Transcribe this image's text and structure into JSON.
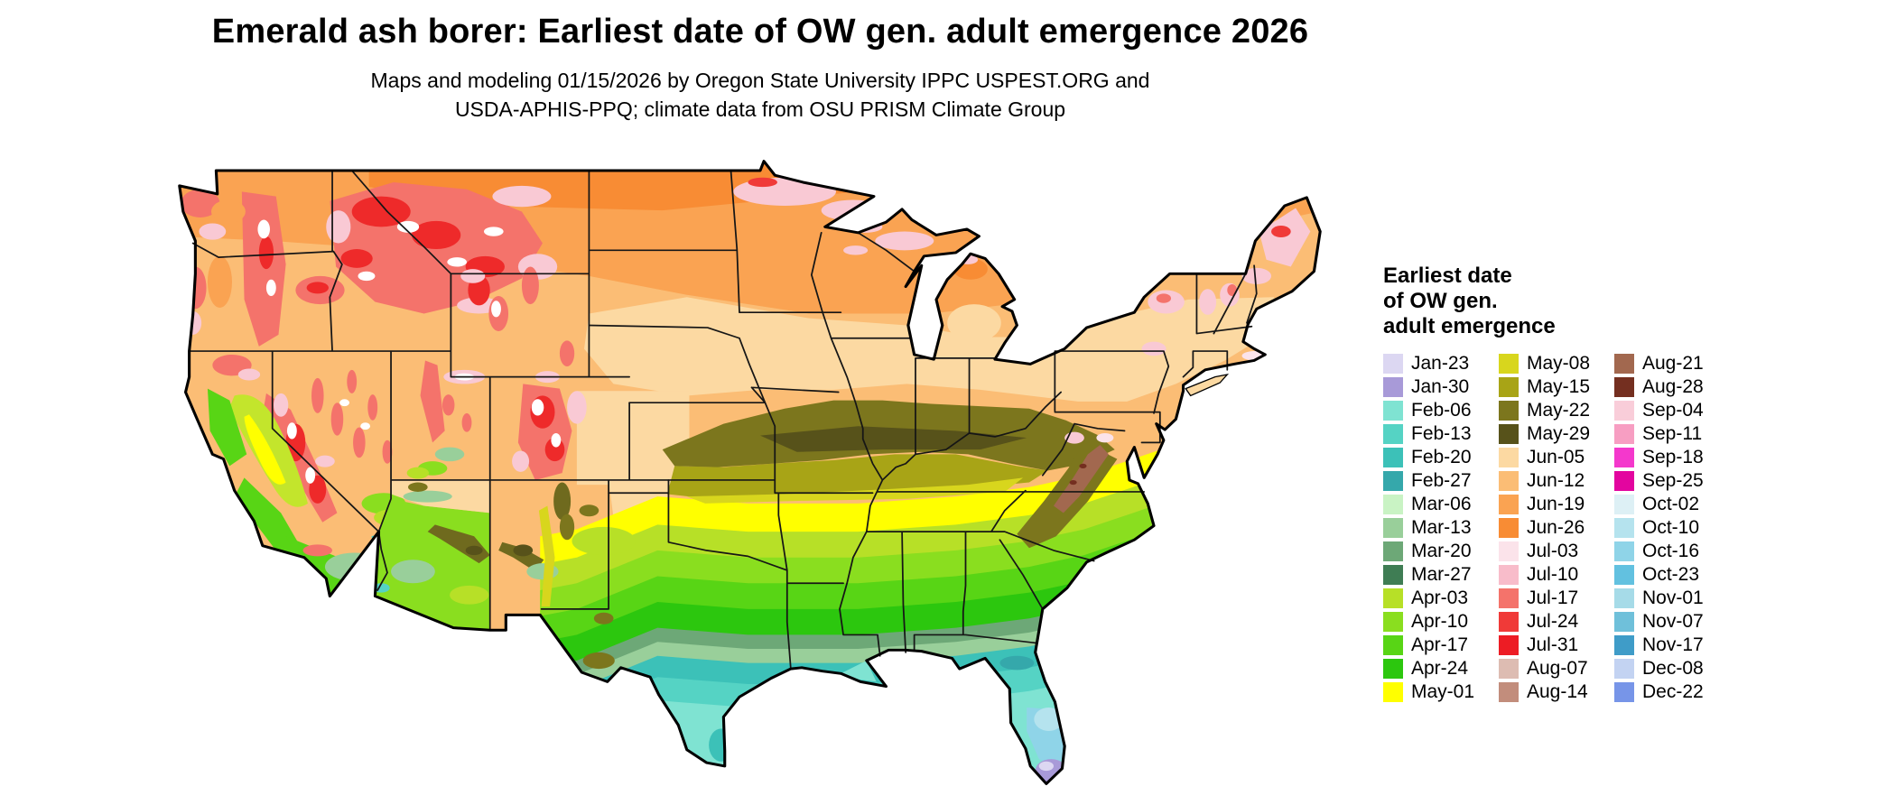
{
  "header": {
    "title": "Emerald ash borer: Earliest date of OW gen. adult emergence 2026",
    "subtitle_line1": "Maps and modeling 01/15/2026 by Oregon State University IPPC USPEST.ORG and",
    "subtitle_line2": "USDA-APHIS-PPQ; climate data from OSU PRISM Climate Group"
  },
  "legend": {
    "title_line1": "Earliest date",
    "title_line2": "of OW gen.",
    "title_line3": "adult emergence",
    "columns": [
      [
        {
          "label": "Jan-23",
          "color": "#dcd7f2"
        },
        {
          "label": "Jan-30",
          "color": "#a89ad8"
        },
        {
          "label": "Feb-06",
          "color": "#7fe3d2"
        },
        {
          "label": "Feb-13",
          "color": "#55d3c4"
        },
        {
          "label": "Feb-20",
          "color": "#3cc1b8"
        },
        {
          "label": "Feb-27",
          "color": "#35a8ab"
        },
        {
          "label": "Mar-06",
          "color": "#c9f3c4"
        },
        {
          "label": "Mar-13",
          "color": "#99cf9a"
        },
        {
          "label": "Mar-20",
          "color": "#6da877"
        },
        {
          "label": "Mar-27",
          "color": "#3f7d54"
        },
        {
          "label": "Apr-03",
          "color": "#b7e027"
        },
        {
          "label": "Apr-10",
          "color": "#8ade1f"
        },
        {
          "label": "Apr-17",
          "color": "#58d515"
        },
        {
          "label": "Apr-24",
          "color": "#2cc70e"
        },
        {
          "label": "May-01",
          "color": "#ffff00"
        }
      ],
      [
        {
          "label": "May-08",
          "color": "#d8d61d"
        },
        {
          "label": "May-15",
          "color": "#a8a416"
        },
        {
          "label": "May-22",
          "color": "#7c761d"
        },
        {
          "label": "May-29",
          "color": "#57521a"
        },
        {
          "label": "Jun-05",
          "color": "#fcd9a2"
        },
        {
          "label": "Jun-12",
          "color": "#fbbd75"
        },
        {
          "label": "Jun-19",
          "color": "#faa352"
        },
        {
          "label": "Jun-26",
          "color": "#f88c34"
        },
        {
          "label": "Jul-03",
          "color": "#fbe3ea"
        },
        {
          "label": "Jul-10",
          "color": "#f8bcca"
        },
        {
          "label": "Jul-17",
          "color": "#f4736b"
        },
        {
          "label": "Jul-24",
          "color": "#f03a38"
        },
        {
          "label": "Jul-31",
          "color": "#ed1c24"
        },
        {
          "label": "Aug-07",
          "color": "#ddbcb2"
        },
        {
          "label": "Aug-14",
          "color": "#c28d7c"
        }
      ],
      [
        {
          "label": "Aug-21",
          "color": "#a2684f"
        },
        {
          "label": "Aug-28",
          "color": "#742f20"
        },
        {
          "label": "Sep-04",
          "color": "#f9cdd9"
        },
        {
          "label": "Sep-11",
          "color": "#f79ec2"
        },
        {
          "label": "Sep-18",
          "color": "#f438cc"
        },
        {
          "label": "Sep-25",
          "color": "#e3059f"
        },
        {
          "label": "Oct-02",
          "color": "#ddf0f5"
        },
        {
          "label": "Oct-10",
          "color": "#b5e3ee"
        },
        {
          "label": "Oct-16",
          "color": "#8fd4e8"
        },
        {
          "label": "Oct-23",
          "color": "#62c1e0"
        },
        {
          "label": "Nov-01",
          "color": "#a6dbe8"
        },
        {
          "label": "Nov-07",
          "color": "#6fc0da"
        },
        {
          "label": "Nov-17",
          "color": "#3f9cc8"
        },
        {
          "label": "Dec-08",
          "color": "#c3d3f2"
        },
        {
          "label": "Dec-22",
          "color": "#7795e8"
        }
      ]
    ]
  },
  "chart_data": {
    "type": "choropleth_map",
    "region": "Continental United States",
    "title": "Emerald ash borer: Earliest date of OW gen. adult emergence 2026",
    "legend_title": "Earliest date of OW gen. adult emergence",
    "categories": [
      "Jan-23",
      "Jan-30",
      "Feb-06",
      "Feb-13",
      "Feb-20",
      "Feb-27",
      "Mar-06",
      "Mar-13",
      "Mar-20",
      "Mar-27",
      "Apr-03",
      "Apr-10",
      "Apr-17",
      "Apr-24",
      "May-01",
      "May-08",
      "May-15",
      "May-22",
      "May-29",
      "Jun-05",
      "Jun-12",
      "Jun-19",
      "Jun-26",
      "Jul-03",
      "Jul-10",
      "Jul-17",
      "Jul-24",
      "Jul-31",
      "Aug-07",
      "Aug-14",
      "Aug-21",
      "Aug-28",
      "Sep-04",
      "Sep-11",
      "Sep-18",
      "Sep-25",
      "Oct-02",
      "Oct-10",
      "Oct-16",
      "Oct-23",
      "Nov-01",
      "Nov-07",
      "Nov-17",
      "Dec-08",
      "Dec-22"
    ],
    "colors": [
      "#dcd7f2",
      "#a89ad8",
      "#7fe3d2",
      "#55d3c4",
      "#3cc1b8",
      "#35a8ab",
      "#c9f3c4",
      "#99cf9a",
      "#6da877",
      "#3f7d54",
      "#b7e027",
      "#8ade1f",
      "#58d515",
      "#2cc70e",
      "#ffff00",
      "#d8d61d",
      "#a8a416",
      "#7c761d",
      "#57521a",
      "#fcd9a2",
      "#fbbd75",
      "#faa352",
      "#f88c34",
      "#fbe3ea",
      "#f8bcca",
      "#f4736b",
      "#f03a38",
      "#ed1c24",
      "#ddbcb2",
      "#c28d7c",
      "#a2684f",
      "#742f20",
      "#f9cdd9",
      "#f79ec2",
      "#f438cc",
      "#e3059f",
      "#ddf0f5",
      "#b5e3ee",
      "#8fd4e8",
      "#62c1e0",
      "#a6dbe8",
      "#6fc0da",
      "#3f9cc8",
      "#c3d3f2",
      "#7795e8"
    ],
    "region_patterns": [
      {
        "area": "Gulf Coast, south Texas, north-central Florida",
        "value": "Feb-06 to Feb-27 (teal)"
      },
      {
        "area": "Southern tier: AR, LA, MS, AL, GA, SC, east TX",
        "value": "Apr-03 to Apr-24 (greens)"
      },
      {
        "area": "Mid-South: S MO, KY, TN, VA",
        "value": "May-01 to May-15 (yellow/olive)"
      },
      {
        "area": "Ohio Valley / Corn Belt: MO, IL, IN, OH, WV, KY",
        "value": "May-22 to May-29 (dark olive)"
      },
      {
        "area": "Northern Plains, Great Lakes, Northeast lowlands",
        "value": "Jun-05 to Jun-26 (orange/tan)"
      },
      {
        "area": "Rockies, Cascades, Sierra Nevada, N Minnesota, N New England",
        "value": "Jul-03 to Jul-31 (pink/red)"
      },
      {
        "area": "California Central Valley",
        "value": "Apr-03 to May-01 (chartreuse/yellow)"
      },
      {
        "area": "Appalachian high ridges",
        "value": "Aug-07 to Aug-28 (brown)"
      },
      {
        "area": "South Florida tip",
        "value": "Jan-30 purple with Oct light-blue patches"
      }
    ]
  }
}
